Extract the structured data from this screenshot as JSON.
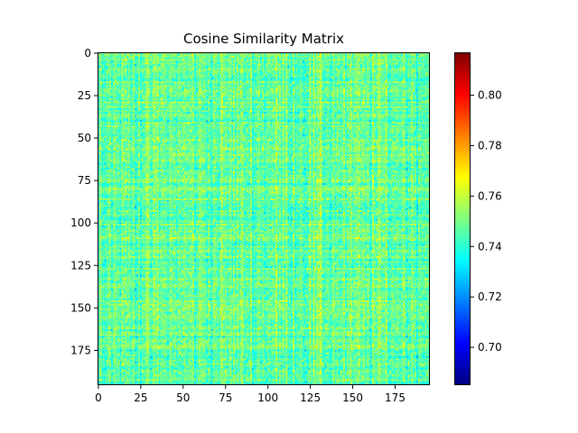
{
  "chart_data": {
    "type": "heatmap",
    "title": "Cosine Similarity Matrix",
    "xlabel": "",
    "ylabel": "",
    "size": 196,
    "xlim": [
      -0.5,
      195.5
    ],
    "ylim": [
      195.5,
      -0.5
    ],
    "x_ticks": [
      0,
      25,
      50,
      75,
      100,
      125,
      150,
      175
    ],
    "x_tick_labels": [
      "0",
      "25",
      "50",
      "75",
      "100",
      "125",
      "150",
      "175"
    ],
    "y_ticks": [
      0,
      25,
      50,
      75,
      100,
      125,
      150,
      175
    ],
    "y_tick_labels": [
      "0",
      "25",
      "50",
      "75",
      "100",
      "125",
      "150",
      "175"
    ],
    "colormap": "jet",
    "value_range": [
      0.685,
      0.817
    ],
    "typical_value": 0.748,
    "colorbar": {
      "ticks": [
        0.7,
        0.72,
        0.74,
        0.76,
        0.78,
        0.8
      ],
      "tick_labels": [
        "0.70",
        "0.72",
        "0.74",
        "0.76",
        "0.78",
        "0.80"
      ]
    },
    "grid": false
  }
}
